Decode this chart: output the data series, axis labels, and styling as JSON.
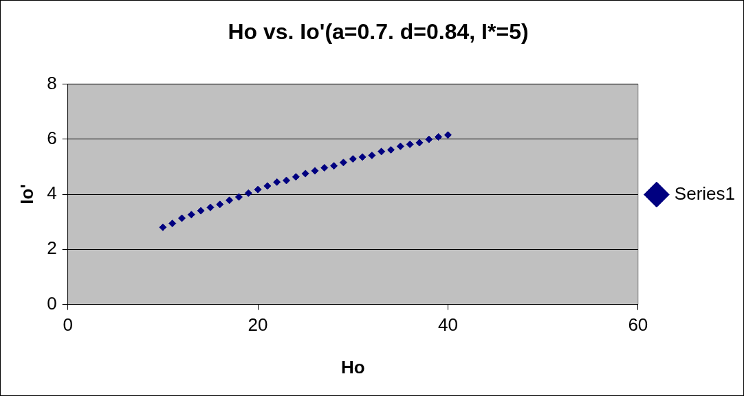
{
  "chart_data": {
    "type": "scatter",
    "title": "Ho vs. Io'(a=0.7. d=0.84, I*=5)",
    "xlabel": "Ho",
    "ylabel": "Io'",
    "x": [
      10,
      11,
      12,
      13,
      14,
      15,
      16,
      17,
      18,
      19,
      20,
      21,
      22,
      23,
      24,
      25,
      26,
      27,
      28,
      29,
      30,
      31,
      32,
      33,
      34,
      35,
      36,
      37,
      38,
      39,
      40
    ],
    "series": [
      {
        "name": "Series1",
        "color": "#000080",
        "values": [
          2.8,
          2.94,
          3.13,
          3.26,
          3.4,
          3.52,
          3.63,
          3.78,
          3.9,
          4.04,
          4.17,
          4.3,
          4.44,
          4.5,
          4.63,
          4.75,
          4.85,
          4.96,
          5.03,
          5.15,
          5.28,
          5.35,
          5.41,
          5.55,
          5.61,
          5.74,
          5.81,
          5.87,
          5.99,
          6.08,
          6.15
        ]
      }
    ],
    "xlim": [
      0,
      60
    ],
    "xticks": [
      0,
      20,
      40,
      60
    ],
    "ylim": [
      0,
      8
    ],
    "yticks": [
      0,
      2,
      4,
      6,
      8
    ],
    "grid": "y",
    "legend": "right",
    "marker": "diamond"
  }
}
